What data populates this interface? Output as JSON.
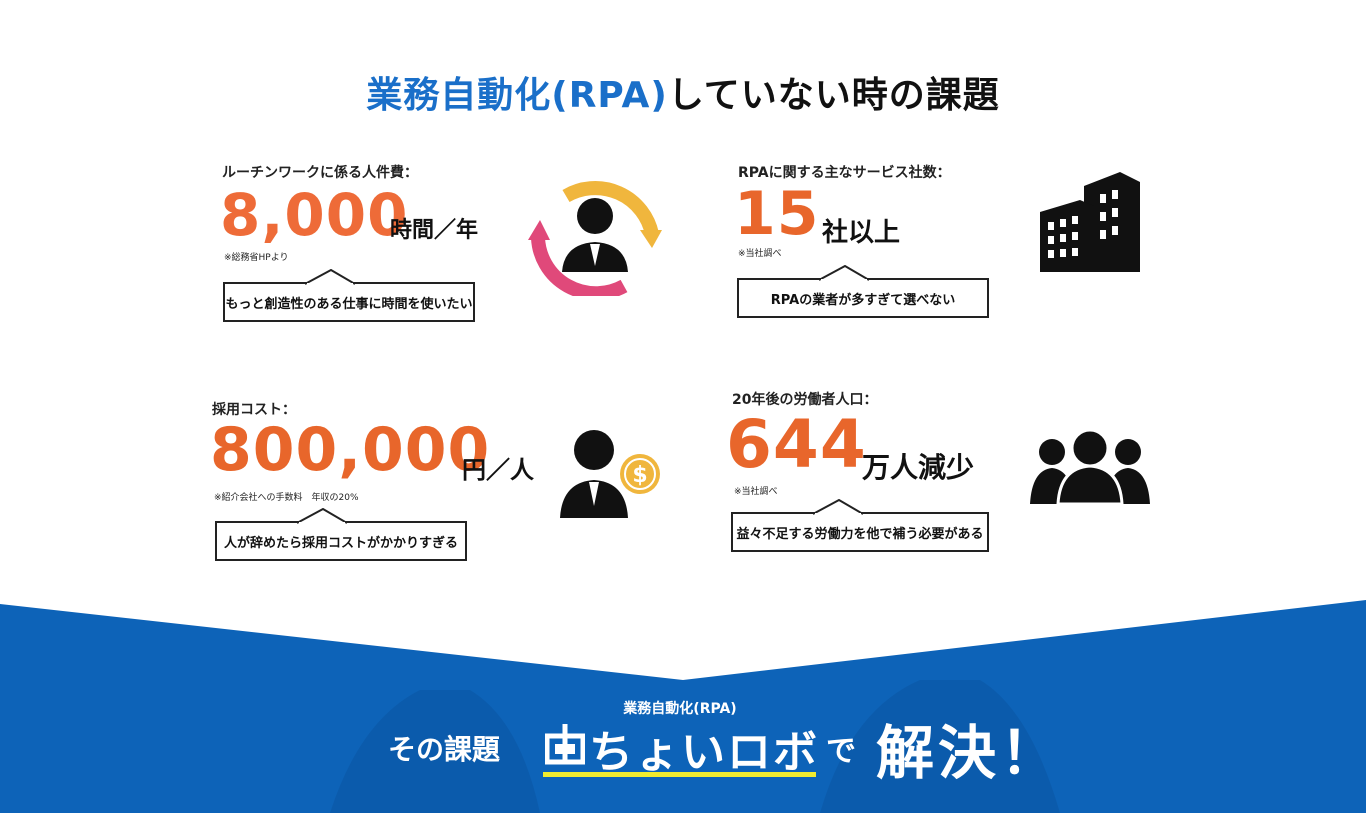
{
  "title": {
    "accent": "業務自動化(RPA)",
    "rest": "していない時の課題"
  },
  "cards": [
    {
      "label": "ルーチンワークに係る人件費：",
      "value": "8,000",
      "unit": "時間／年",
      "note": "※総務省HPより",
      "bubble": "もっと創造性のある仕事に時間を使いたい",
      "icon": "person-cycle-icon"
    },
    {
      "label": "RPAに関する主なサービス社数：",
      "value": "15",
      "unit": "社以上",
      "note": "※当社調べ",
      "bubble": "RPAの業者が多すぎて選べない",
      "icon": "office-building-icon"
    },
    {
      "label": "採用コスト：",
      "value": "800,000",
      "unit": "円／人",
      "note": "※紹介会社への手数料　年収の20%",
      "bubble": "人が辞めたら採用コストがかかりすぎる",
      "icon": "person-coin-icon"
    },
    {
      "label": "20年後の労働者人口：",
      "value": "644",
      "unit": "万人減少",
      "note": "※当社調べ",
      "bubble": "益々不足する労働力を他で補う必要がある",
      "icon": "group-people-icon"
    }
  ],
  "footer": {
    "sub": "業務自動化(RPA)",
    "lead": "その課題",
    "logo": "ちょいロボ",
    "connector": "で",
    "solve": "解決！"
  },
  "colors": {
    "accent_blue": "#1a6fc9",
    "number_orange": "#e8662b",
    "footer_blue": "#0d63b8",
    "underline_yellow": "#f1ec2f",
    "arrow_yellow": "#f0b63d",
    "arrow_pink": "#e0497a"
  }
}
